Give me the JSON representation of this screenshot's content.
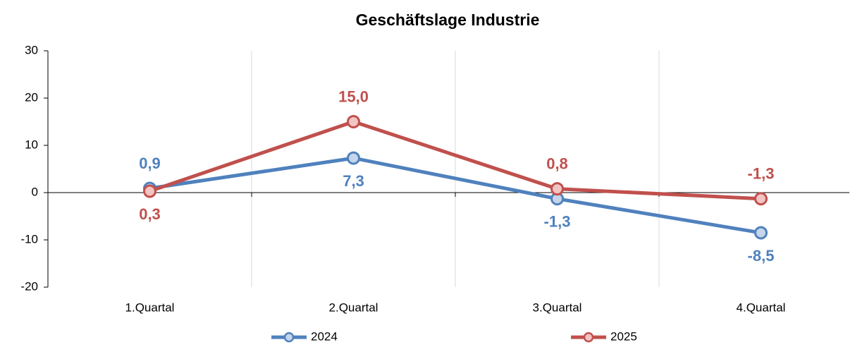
{
  "chart_data": {
    "type": "line",
    "title": "Geschäftslage Industrie",
    "categories": [
      "1.Quartal",
      "2.Quartal",
      "3.Quartal",
      "4.Quartal"
    ],
    "series": [
      {
        "name": "2024",
        "color": "#4f81bd",
        "values": [
          0.9,
          7.3,
          -1.3,
          -8.5
        ],
        "value_labels": [
          "0,9",
          "7,3",
          "-1,3",
          "-8,5"
        ]
      },
      {
        "name": "2025",
        "color": "#c0504d",
        "values": [
          0.3,
          15.0,
          0.8,
          -1.3
        ],
        "value_labels": [
          "0,3",
          "15,0",
          "0,8",
          "-1,3"
        ]
      }
    ],
    "ylim": [
      -20,
      30
    ],
    "yticks": [
      -20,
      -10,
      0,
      10,
      20,
      30
    ],
    "grid": true,
    "legend": "bottom"
  }
}
